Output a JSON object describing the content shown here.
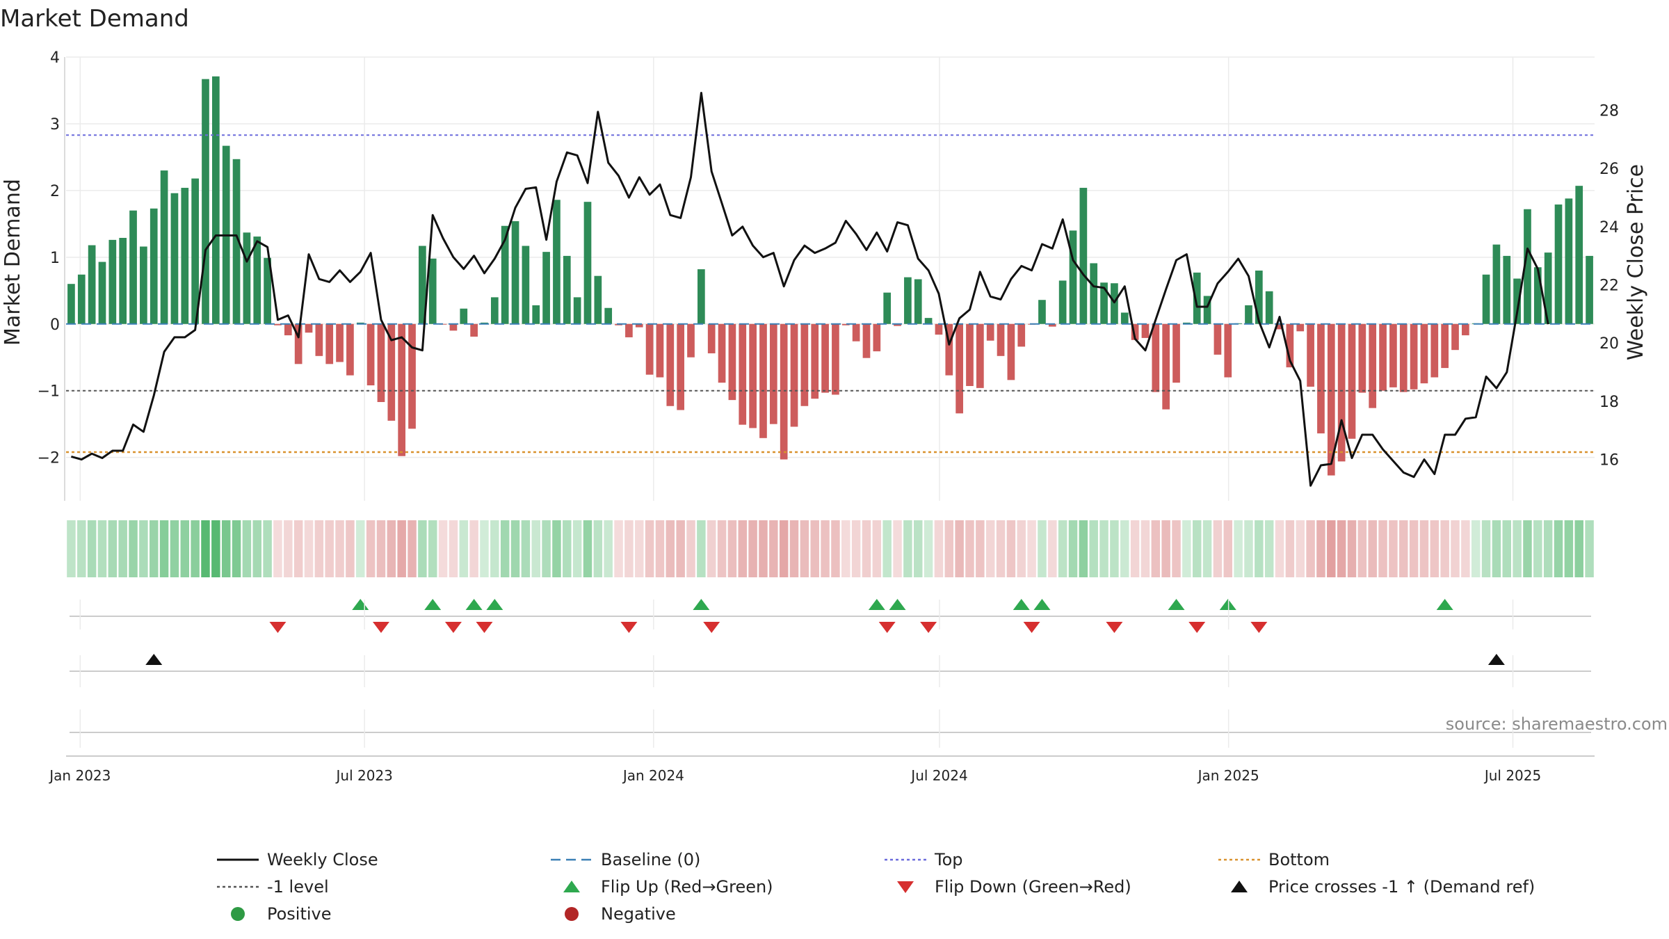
{
  "chart_data": {
    "type": "bar",
    "title": "Market Demand",
    "ylabel_left": "Market Demand",
    "ylabel_right": "Weekly Close Price",
    "source": "source: sharemaestro.com",
    "left_axis": {
      "ylim": [
        -2.65,
        4.0
      ],
      "ticks": [
        -2,
        -1,
        0,
        1,
        2,
        3,
        4
      ],
      "tick_labels": [
        "−2",
        "−1",
        "0",
        "1",
        "2",
        "3",
        "4"
      ]
    },
    "right_axis": {
      "ylim": [
        14.58,
        29.83
      ],
      "ticks": [
        16,
        18,
        20,
        22,
        24,
        26,
        28
      ],
      "tick_labels": [
        "16",
        "18",
        "20",
        "22",
        "24",
        "26",
        "28"
      ]
    },
    "reference_lines": {
      "top": 2.83,
      "minus_one": -1.0,
      "bottom": -1.92,
      "baseline": 0
    },
    "date_axis": {
      "start": "2022-12-23",
      "end": "2025-08-22",
      "ticks": [
        {
          "label": "Jan 2023",
          "date": "2023-01-01"
        },
        {
          "label": "Jul 2023",
          "date": "2023-07-01"
        },
        {
          "label": "Jan 2024",
          "date": "2024-01-01"
        },
        {
          "label": "Jul 2024",
          "date": "2024-07-01"
        },
        {
          "label": "Jan 2025",
          "date": "2025-01-01"
        },
        {
          "label": "Jul 2025",
          "date": "2025-07-01"
        }
      ]
    },
    "demand": [
      0.6,
      0.74,
      1.18,
      0.93,
      1.26,
      1.29,
      1.7,
      1.16,
      1.73,
      2.3,
      1.96,
      2.04,
      2.18,
      3.67,
      3.71,
      2.67,
      2.47,
      1.37,
      1.31,
      0.99,
      -0.02,
      -0.17,
      -0.6,
      -0.13,
      -0.48,
      -0.6,
      -0.57,
      -0.77,
      0.02,
      -0.92,
      -1.17,
      -1.45,
      -1.98,
      -1.57,
      1.17,
      0.98,
      -0.01,
      -0.1,
      0.23,
      -0.19,
      0.02,
      0.4,
      1.47,
      1.54,
      1.17,
      0.28,
      1.08,
      1.86,
      1.02,
      0.4,
      1.83,
      0.72,
      0.24,
      -0.02,
      -0.2,
      -0.05,
      -0.76,
      -0.8,
      -1.23,
      -1.29,
      -0.5,
      0.82,
      -0.44,
      -0.88,
      -1.14,
      -1.51,
      -1.56,
      -1.71,
      -1.5,
      -2.03,
      -1.54,
      -1.23,
      -1.12,
      -1.03,
      -1.06,
      -0.02,
      -0.26,
      -0.51,
      -0.41,
      0.47,
      -0.03,
      0.7,
      0.67,
      0.09,
      -0.16,
      -0.77,
      -1.34,
      -0.93,
      -0.96,
      -0.25,
      -0.48,
      -0.84,
      -0.34,
      -0.01,
      0.36,
      -0.04,
      0.65,
      1.4,
      2.04,
      0.91,
      0.62,
      0.61,
      0.17,
      -0.24,
      -0.21,
      -1.02,
      -1.28,
      -0.88,
      0.02,
      0.77,
      0.42,
      -0.46,
      -0.8,
      0.01,
      0.28,
      0.8,
      0.49,
      -0.08,
      -0.65,
      -0.11,
      -0.94,
      -1.64,
      -2.27,
      -2.06,
      -1.72,
      -1.03,
      -1.26,
      -1.0,
      -0.95,
      -1.02,
      -0.98,
      -0.89,
      -0.8,
      -0.66,
      -0.39,
      -0.17,
      0.01,
      0.74,
      1.19,
      1.02,
      0.68,
      1.72,
      0.85,
      1.07,
      1.79,
      1.88,
      2.07,
      1.02
    ],
    "weekly_close": [
      16.1,
      16.0,
      16.2,
      16.05,
      16.3,
      16.3,
      17.2,
      16.95,
      18.2,
      19.7,
      20.2,
      20.2,
      20.45,
      23.2,
      23.7,
      23.7,
      23.7,
      22.8,
      23.5,
      23.3,
      20.8,
      20.95,
      20.2,
      23.05,
      22.2,
      22.1,
      22.5,
      22.1,
      22.45,
      23.1,
      20.8,
      20.1,
      20.2,
      19.85,
      19.75,
      24.4,
      23.6,
      22.95,
      22.55,
      23.0,
      22.4,
      22.9,
      23.55,
      24.65,
      25.3,
      25.35,
      23.55,
      25.55,
      26.55,
      26.45,
      25.5,
      27.95,
      26.2,
      25.75,
      25.0,
      25.7,
      25.1,
      25.45,
      24.4,
      24.3,
      25.7,
      28.6,
      25.9,
      24.8,
      23.7,
      24.0,
      23.35,
      22.95,
      23.1,
      21.95,
      22.85,
      23.35,
      23.1,
      23.25,
      23.45,
      24.2,
      23.75,
      23.2,
      23.8,
      23.15,
      24.15,
      24.05,
      22.9,
      22.5,
      21.7,
      19.95,
      20.85,
      21.15,
      22.45,
      21.6,
      21.5,
      22.2,
      22.65,
      22.5,
      23.4,
      23.25,
      24.25,
      22.85,
      22.35,
      21.95,
      21.9,
      21.4,
      21.95,
      20.15,
      19.75,
      20.8,
      21.85,
      22.85,
      23.05,
      21.25,
      21.25,
      22.05,
      22.45,
      22.9,
      22.3,
      20.75,
      19.85,
      20.9,
      19.4,
      18.7,
      15.1,
      15.8,
      15.85,
      17.35,
      16.05,
      16.85,
      16.85,
      16.35,
      15.95,
      15.55,
      15.4,
      16.0,
      15.5,
      16.85,
      16.85,
      17.4,
      17.45,
      18.85,
      18.45,
      19.0,
      21.05,
      23.25,
      22.55,
      20.65
    ],
    "flip_up_weeks": [
      28,
      35,
      39,
      41,
      61,
      78,
      80,
      92,
      94,
      107,
      112,
      133
    ],
    "flip_down_weeks": [
      20,
      30,
      37,
      40,
      54,
      62,
      79,
      83,
      93,
      101,
      109,
      115
    ],
    "price_cross_weeks": [
      8,
      138
    ],
    "legend": [
      {
        "label": "Weekly Close",
        "symbol": "line-solid",
        "color": "#111111"
      },
      {
        "label": "Baseline (0)",
        "symbol": "line-dash",
        "color": "#3a7fb5"
      },
      {
        "label": "Top",
        "symbol": "line-dot",
        "color": "#6b6bdc"
      },
      {
        "label": "Bottom",
        "symbol": "line-dot",
        "color": "#d9922e"
      },
      {
        "label": "-1 level",
        "symbol": "line-dot",
        "color": "#555555"
      },
      {
        "label": "Flip Up (Red→Green)",
        "symbol": "triangle-up",
        "color": "#2ea84f"
      },
      {
        "label": "Flip Down (Green→Red)",
        "symbol": "triangle-down",
        "color": "#d62f2f"
      },
      {
        "label": "Price crosses -1 ↑ (Demand ref)",
        "symbol": "triangle-up",
        "color": "#111111"
      },
      {
        "label": "Positive",
        "symbol": "dot",
        "color": "#2e9a44"
      },
      {
        "label": "Negative",
        "symbol": "dot",
        "color": "#b22626"
      }
    ]
  },
  "colors": {
    "positive_bar": "#2e8b57",
    "negative_bar": "#cd5c5c",
    "heat_positive": "#2ea84f",
    "heat_negative": "#cd5c5c",
    "line": "#111111",
    "grid": "#ebebeb"
  }
}
